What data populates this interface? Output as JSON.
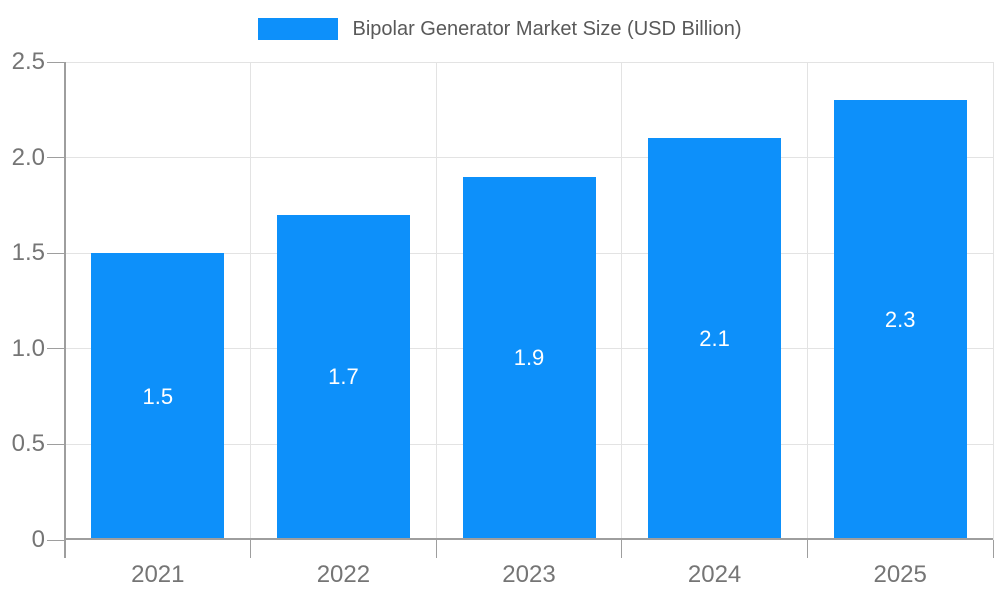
{
  "legend": {
    "label": "Bipolar Generator Market Size (USD Billion)"
  },
  "colors": {
    "bar": "#0D90FA",
    "gridline": "#E3E3E3",
    "axis": "#9E9E9E",
    "axis_label": "#757575",
    "legend_text": "#595959",
    "value_label": "#FFFFFF"
  },
  "chart_data": {
    "type": "bar",
    "title": "Bipolar Generator Market Size (USD Billion)",
    "categories": [
      "2021",
      "2022",
      "2023",
      "2024",
      "2025"
    ],
    "values": [
      1.5,
      1.7,
      1.9,
      2.1,
      2.3
    ],
    "value_labels": [
      "1.5",
      "1.7",
      "1.9",
      "2.1",
      "2.3"
    ],
    "series": [
      {
        "name": "Bipolar Generator Market Size (USD Billion)",
        "values": [
          1.5,
          1.7,
          1.9,
          2.1,
          2.3
        ]
      }
    ],
    "xlabel": "",
    "ylabel": "",
    "ylim": [
      0,
      2.5
    ],
    "yticks": [
      0,
      0.5,
      1.0,
      1.5,
      2.0,
      2.5
    ],
    "ytick_labels": [
      "0",
      "0.5",
      "1.0",
      "1.5",
      "2.0",
      "2.5"
    ],
    "grid": true,
    "legend_position": "top-center"
  }
}
